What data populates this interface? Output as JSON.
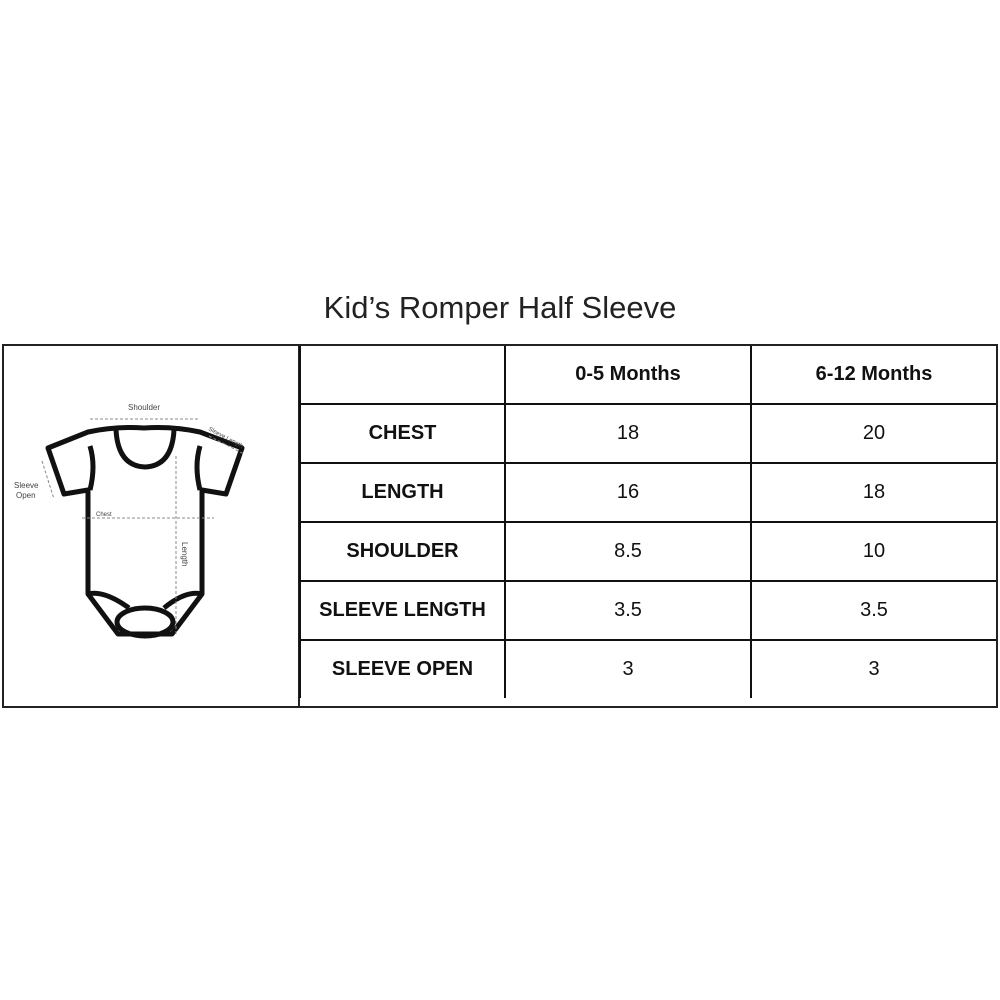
{
  "title": "Kid’s Romper Half Sleeve",
  "diagram": {
    "shoulder": "Shoulder",
    "sleeve_length": "Sleeve Length",
    "sleeve_open_1": "Sleeve",
    "sleeve_open_2": "Open",
    "chest": "Chest",
    "length": "Length"
  },
  "table": {
    "headers": [
      "",
      "0-5 Months",
      "6-12 Months"
    ],
    "rows": [
      {
        "label": "CHEST",
        "values": [
          "18",
          "20"
        ]
      },
      {
        "label": "LENGTH",
        "values": [
          "16",
          "18"
        ]
      },
      {
        "label": "SHOULDER",
        "values": [
          "8.5",
          "10"
        ]
      },
      {
        "label": "SLEEVE LENGTH",
        "values": [
          "3.5",
          "3.5"
        ]
      },
      {
        "label": "SLEEVE OPEN",
        "values": [
          "3",
          "3"
        ]
      }
    ]
  }
}
